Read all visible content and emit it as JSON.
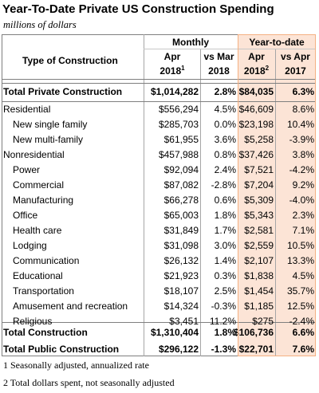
{
  "title": "Year-To-Date Private US Construction Spending",
  "subtitle": "millions of dollars",
  "header": {
    "group_monthly": "Monthly",
    "group_ytd": "Year-to-date",
    "col_type": "Type of Construction",
    "col_apr2018_line1": "Apr",
    "col_apr2018_line2": "2018",
    "col_apr2018_sup": "1",
    "col_vsmar_line1": "vs Mar",
    "col_vsmar_line2": "2018",
    "col_ytd2018_line1": "Apr",
    "col_ytd2018_line2": "2018",
    "col_ytd2018_sup": "2",
    "col_vsapr_line1": "vs Apr",
    "col_vsapr_line2": "2017"
  },
  "rows": [
    {
      "label": "Total Private Construction",
      "apr2018": "$1,014,282",
      "vs_mar": "2.8%",
      "ytd2018": "$84,035",
      "vs_apr2017": "6.3%",
      "bold": true
    },
    {
      "label": "Residential",
      "apr2018": "$556,294",
      "vs_mar": "4.5%",
      "ytd2018": "$46,609",
      "vs_apr2017": "8.6%"
    },
    {
      "label": "New single family",
      "apr2018": "$285,703",
      "vs_mar": "0.0%",
      "ytd2018": "$23,198",
      "vs_apr2017": "10.4%",
      "indent": true
    },
    {
      "label": "New multi-family",
      "apr2018": "$61,955",
      "vs_mar": "3.6%",
      "ytd2018": "$5,258",
      "vs_apr2017": "-3.9%",
      "indent": true
    },
    {
      "label": "Nonresidential",
      "apr2018": "$457,988",
      "vs_mar": "0.8%",
      "ytd2018": "$37,426",
      "vs_apr2017": "3.8%"
    },
    {
      "label": "Power",
      "apr2018": "$92,094",
      "vs_mar": "2.4%",
      "ytd2018": "$7,521",
      "vs_apr2017": "-4.2%",
      "indent": true
    },
    {
      "label": "Commercial",
      "apr2018": "$87,082",
      "vs_mar": "-2.8%",
      "ytd2018": "$7,204",
      "vs_apr2017": "9.2%",
      "indent": true
    },
    {
      "label": "Manufacturing",
      "apr2018": "$66,278",
      "vs_mar": "0.6%",
      "ytd2018": "$5,309",
      "vs_apr2017": "-4.0%",
      "indent": true
    },
    {
      "label": "Office",
      "apr2018": "$65,003",
      "vs_mar": "1.8%",
      "ytd2018": "$5,343",
      "vs_apr2017": "2.3%",
      "indent": true
    },
    {
      "label": "Health care",
      "apr2018": "$31,849",
      "vs_mar": "1.7%",
      "ytd2018": "$2,581",
      "vs_apr2017": "7.1%",
      "indent": true
    },
    {
      "label": "Lodging",
      "apr2018": "$31,098",
      "vs_mar": "3.0%",
      "ytd2018": "$2,559",
      "vs_apr2017": "10.5%",
      "indent": true
    },
    {
      "label": "Communication",
      "apr2018": "$26,132",
      "vs_mar": "1.4%",
      "ytd2018": "$2,107",
      "vs_apr2017": "13.3%",
      "indent": true
    },
    {
      "label": "Educational",
      "apr2018": "$21,923",
      "vs_mar": "0.3%",
      "ytd2018": "$1,838",
      "vs_apr2017": "4.5%",
      "indent": true
    },
    {
      "label": "Transportation",
      "apr2018": "$18,107",
      "vs_mar": "2.5%",
      "ytd2018": "$1,454",
      "vs_apr2017": "35.7%",
      "indent": true
    },
    {
      "label": "Amusement and recreation",
      "apr2018": "$14,324",
      "vs_mar": "-0.3%",
      "ytd2018": "$1,185",
      "vs_apr2017": "12.5%",
      "indent": true
    },
    {
      "label": "Religious",
      "apr2018": "$3,451",
      "vs_mar": "11.2%",
      "ytd2018": "$275",
      "vs_apr2017": "-2.4%",
      "indent": true
    },
    {
      "label": "Total Construction",
      "apr2018": "$1,310,404",
      "vs_mar": "1.8%",
      "ytd2018": "$106,736",
      "vs_apr2017": "6.6%",
      "bold": true
    },
    {
      "label": "Total Public Construction",
      "apr2018": "$296,122",
      "vs_mar": "-1.3%",
      "ytd2018": "$22,701",
      "vs_apr2017": "7.6%",
      "bold": true
    }
  ],
  "footnotes": [
    "1 Seasonally adjusted, annualized rate",
    "2 Total dollars spent, not seasonally adjusted"
  ]
}
